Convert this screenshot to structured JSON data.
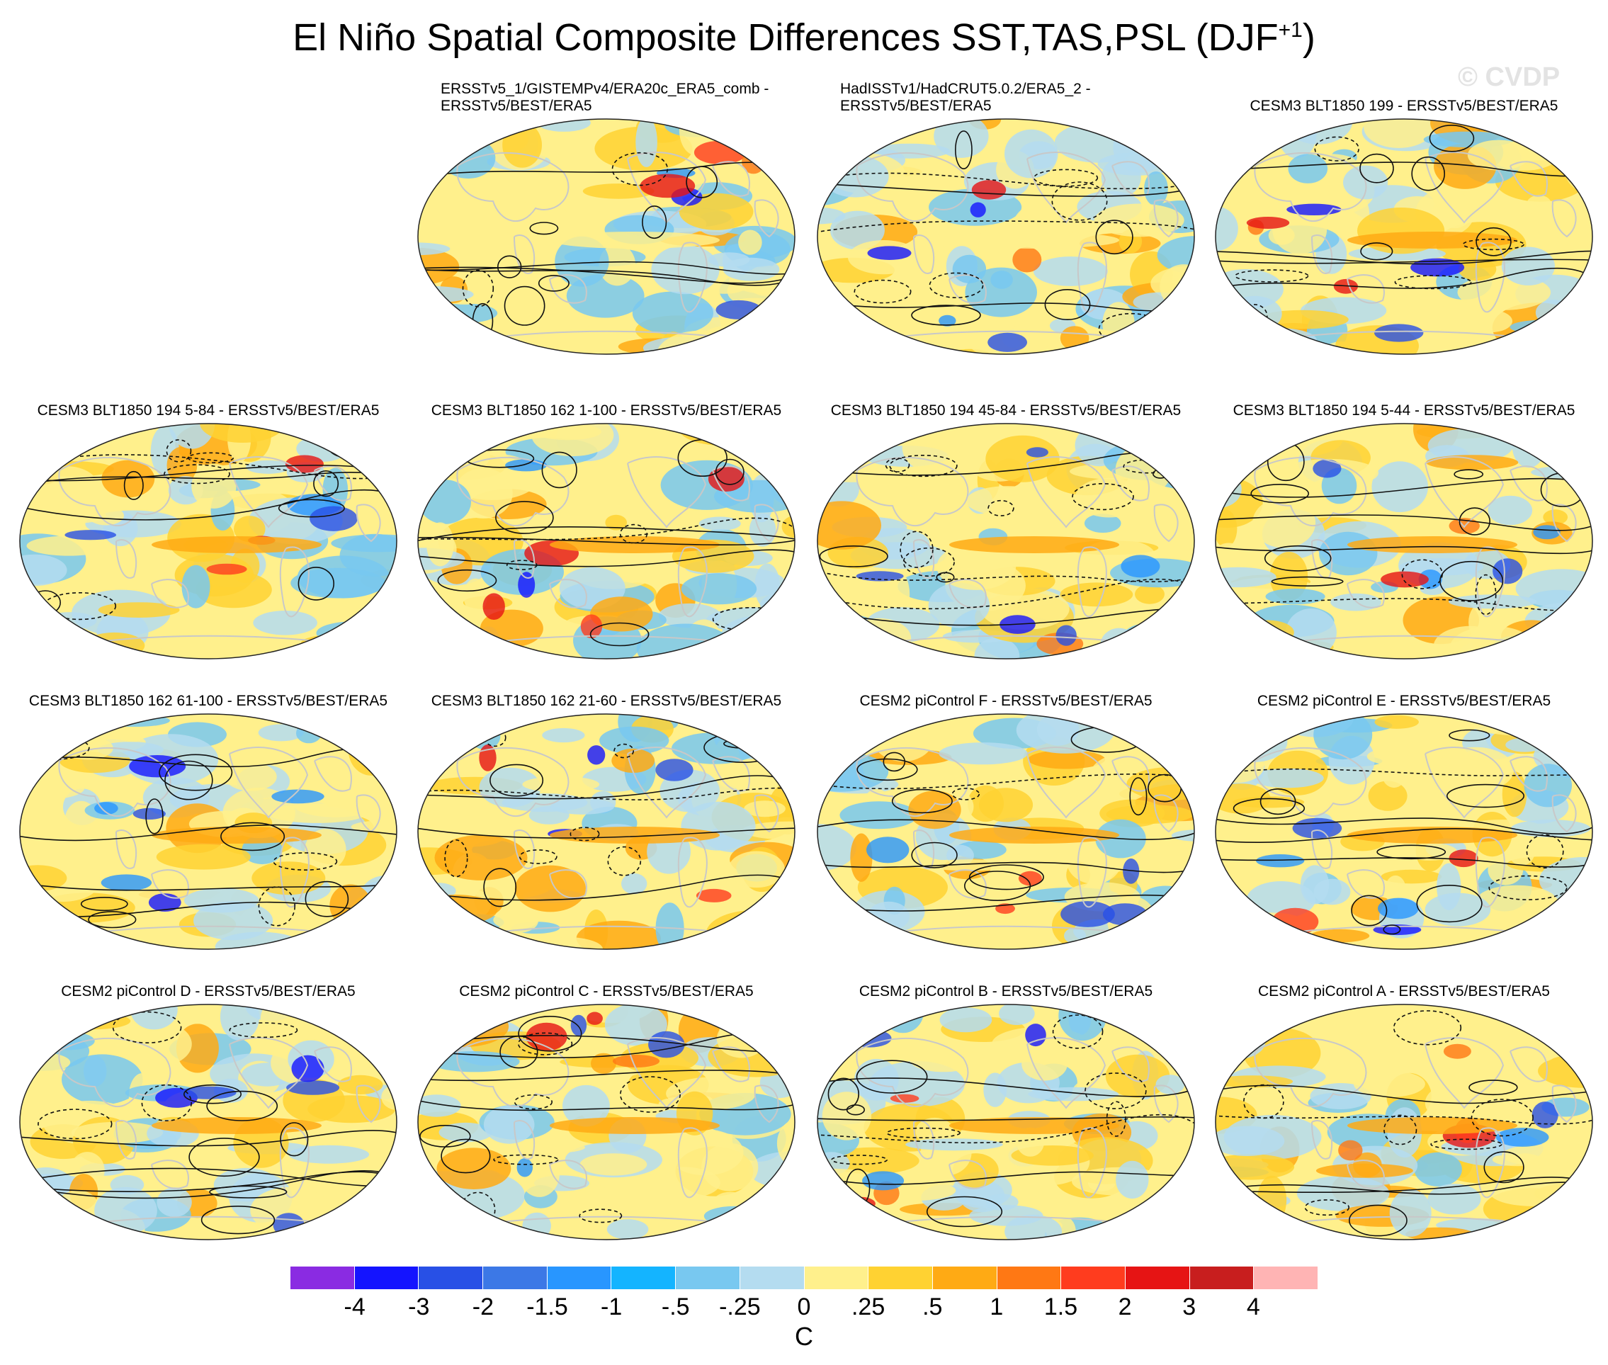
{
  "title": "El Niño Spatial Composite Differences SST,TAS,PSL (DJF",
  "title_superscript": "+1",
  "title_close": ")",
  "watermark": "© CVDP",
  "panels": [
    {
      "line1": "ERSSTv5_1/GISTEMPv4/ERA20c_ERA5_comb -",
      "line2": "ERSSTv5/BEST/ERA5"
    },
    {
      "line1": "HadISSTv1/HadCRUT5.0.2/ERA5_2 -",
      "line2": "ERSSTv5/BEST/ERA5"
    },
    {
      "line1": "CESM3 BLT1850 199 - ERSSTv5/BEST/ERA5",
      "line2": ""
    },
    {
      "line1": "CESM3 BLT1850 194 5-84 - ERSSTv5/BEST/ERA5",
      "line2": ""
    },
    {
      "line1": "CESM3 BLT1850 162 1-100 - ERSSTv5/BEST/ERA5",
      "line2": ""
    },
    {
      "line1": "CESM3 BLT1850 194 45-84 - ERSSTv5/BEST/ERA5",
      "line2": ""
    },
    {
      "line1": "CESM3 BLT1850 194 5-44 - ERSSTv5/BEST/ERA5",
      "line2": ""
    },
    {
      "line1": "CESM3 BLT1850 162 61-100 - ERSSTv5/BEST/ERA5",
      "line2": ""
    },
    {
      "line1": "CESM3 BLT1850 162 21-60 - ERSSTv5/BEST/ERA5",
      "line2": ""
    },
    {
      "line1": "CESM2 piControl F - ERSSTv5/BEST/ERA5",
      "line2": ""
    },
    {
      "line1": "CESM2 piControl E - ERSSTv5/BEST/ERA5",
      "line2": ""
    },
    {
      "line1": "CESM2 piControl D - ERSSTv5/BEST/ERA5",
      "line2": ""
    },
    {
      "line1": "CESM2 piControl C - ERSSTv5/BEST/ERA5",
      "line2": ""
    },
    {
      "line1": "CESM2 piControl B - ERSSTv5/BEST/ERA5",
      "line2": ""
    },
    {
      "line1": "CESM2 piControl A - ERSSTv5/BEST/ERA5",
      "line2": ""
    }
  ],
  "colorbar": {
    "colors": [
      "#8a2be2",
      "#1414ff",
      "#2850e6",
      "#3c78e6",
      "#2896ff",
      "#14b4ff",
      "#78c8f0",
      "#b4dcf0",
      "#fff08c",
      "#ffd232",
      "#ffaa14",
      "#ff7814",
      "#ff3c1e",
      "#e61414",
      "#c81e1e",
      "#ffb4b4"
    ],
    "labels": [
      "-4",
      "-3",
      "-2",
      "-1.5",
      "-1",
      "-.5",
      "-.25",
      "0",
      ".25",
      ".5",
      "1",
      "1.5",
      "2",
      "3",
      "4"
    ],
    "units": "C"
  }
}
